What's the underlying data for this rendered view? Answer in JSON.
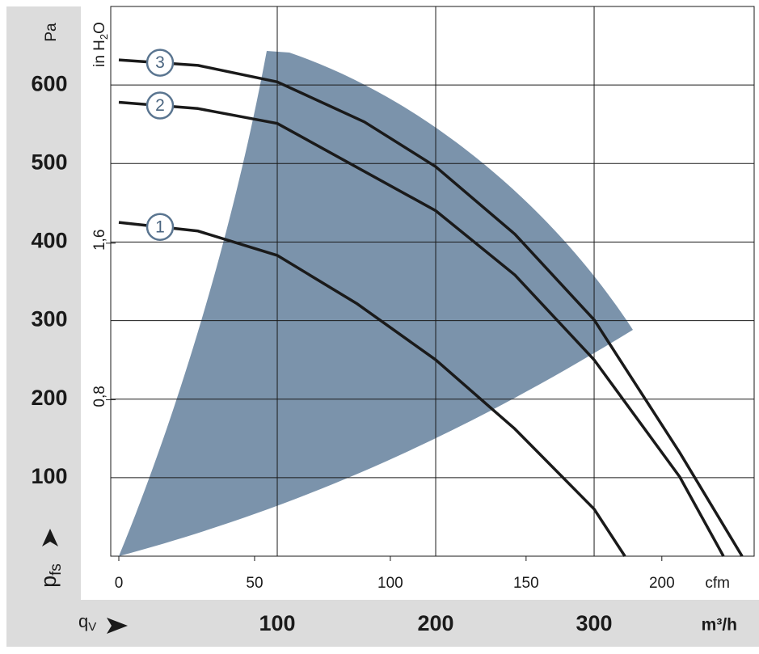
{
  "chart_data": {
    "type": "line",
    "ylabel": [
      "p",
      "fs"
    ],
    "yunit": "Pa",
    "y2label": [
      "in H",
      "2",
      "O"
    ],
    "xlabel": [
      "q",
      "V"
    ],
    "xunit": "m³/h",
    "x2unit": "cfm",
    "xlim": [
      0,
      401
    ],
    "xticks": [
      100,
      200,
      300
    ],
    "x2lim": [
      0,
      234
    ],
    "x2ticks": [
      0,
      50,
      100,
      150,
      200
    ],
    "ylim": [
      0,
      700
    ],
    "yticks": [
      100,
      200,
      300,
      400,
      500,
      600
    ],
    "y2lim": [
      0,
      2.81
    ],
    "y2ticks": [
      {
        "value": 0.8,
        "label": "0,8"
      },
      {
        "value": 1.6,
        "label": "1,6"
      }
    ],
    "grid": true,
    "series": [
      {
        "name": "1",
        "color": "#1a1a1a",
        "x": [
          0,
          50,
          100,
          150,
          200,
          250,
          300,
          319.4
        ],
        "values": [
          425,
          414,
          383,
          322,
          250,
          162,
          60,
          0
        ]
      },
      {
        "name": "2",
        "color": "#1a1a1a",
        "x": [
          0,
          50,
          100,
          200,
          250,
          300,
          354,
          381.6
        ],
        "values": [
          578,
          570,
          551,
          440,
          358,
          250,
          101,
          0
        ]
      },
      {
        "name": "3",
        "color": "#1a1a1a",
        "x": [
          0,
          50,
          100,
          155,
          200,
          250,
          300,
          354,
          393.4
        ],
        "values": [
          632,
          625,
          604,
          553,
          496,
          410,
          301,
          132,
          0
        ]
      }
    ]
  }
}
